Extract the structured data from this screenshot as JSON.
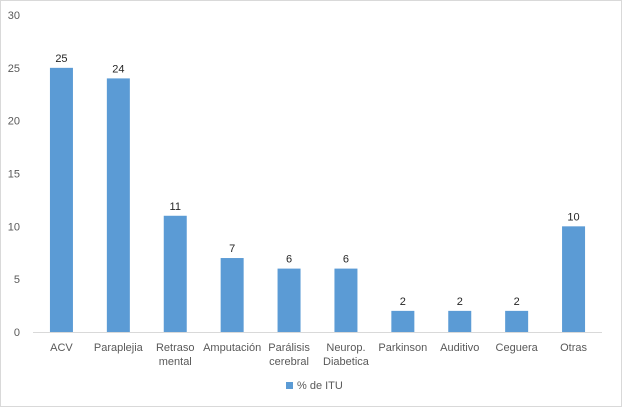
{
  "chart_data": {
    "type": "bar",
    "categories": [
      [
        "ACV"
      ],
      [
        "Paraplejia"
      ],
      [
        "Retraso",
        "mental"
      ],
      [
        "Amputación"
      ],
      [
        "Parálisis",
        "cerebral"
      ],
      [
        "Neurop.",
        "Diabetica"
      ],
      [
        "Parkinson"
      ],
      [
        "Auditivo"
      ],
      [
        "Ceguera"
      ],
      [
        "Otras"
      ]
    ],
    "series": [
      {
        "name": "% de ITU",
        "values": [
          25,
          24,
          11,
          7,
          6,
          6,
          2,
          2,
          2,
          10
        ],
        "color": "#5b9bd5"
      }
    ],
    "ylim": [
      0,
      30
    ],
    "yticks": [
      0,
      5,
      10,
      15,
      20,
      25,
      30
    ],
    "grid": false,
    "legend_position": "bottom-center",
    "data_labels": true
  }
}
